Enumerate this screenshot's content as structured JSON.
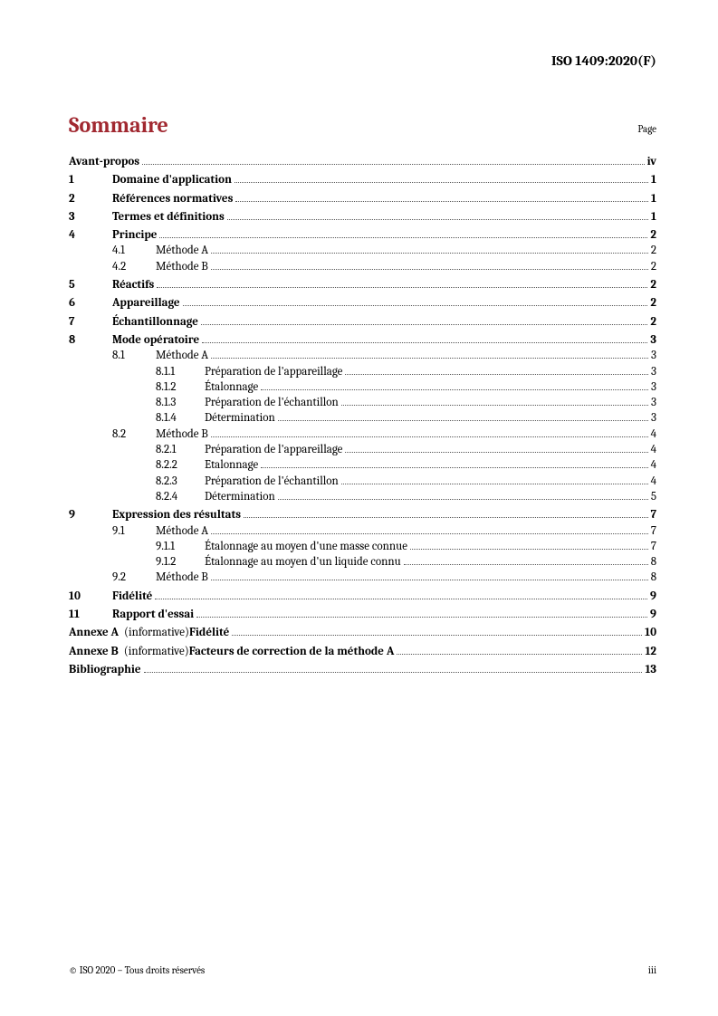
{
  "header": {
    "doc_id": "ISO 1409:2020(F)"
  },
  "title": "Sommaire",
  "page_label": "Page",
  "entries": [
    {
      "level": 0,
      "num": "",
      "label": "Avant-propos",
      "page": "iv",
      "bold": true,
      "gap": false,
      "annex": false
    },
    {
      "level": 1,
      "num": "1",
      "label": "Domaine d'application",
      "page": "1",
      "bold": true,
      "gap": true,
      "annex": false
    },
    {
      "level": 1,
      "num": "2",
      "label": "Références normatives",
      "page": "1",
      "bold": true,
      "gap": true,
      "annex": false
    },
    {
      "level": 1,
      "num": "3",
      "label": "Termes et définitions",
      "page": "1",
      "bold": true,
      "gap": true,
      "annex": false
    },
    {
      "level": 1,
      "num": "4",
      "label": "Principe",
      "page": "2",
      "bold": true,
      "gap": true,
      "annex": false
    },
    {
      "level": 2,
      "num": "4.1",
      "label": "Méthode A",
      "page": "2",
      "bold": false,
      "gap": false,
      "annex": false
    },
    {
      "level": 2,
      "num": "4.2",
      "label": "Méthode B",
      "page": "2",
      "bold": false,
      "gap": false,
      "annex": false
    },
    {
      "level": 1,
      "num": "5",
      "label": "Réactifs",
      "page": "2",
      "bold": true,
      "gap": true,
      "annex": false
    },
    {
      "level": 1,
      "num": "6",
      "label": "Appareillage",
      "page": "2",
      "bold": true,
      "gap": true,
      "annex": false
    },
    {
      "level": 1,
      "num": "7",
      "label": "Échantillonnage",
      "page": "2",
      "bold": true,
      "gap": true,
      "annex": false
    },
    {
      "level": 1,
      "num": "8",
      "label": "Mode opératoire",
      "page": "3",
      "bold": true,
      "gap": true,
      "annex": false
    },
    {
      "level": 2,
      "num": "8.1",
      "label": "Méthode A",
      "page": "3",
      "bold": false,
      "gap": false,
      "annex": false
    },
    {
      "level": 3,
      "num": "8.1.1",
      "label": "Préparation de l'appareillage",
      "page": "3",
      "bold": false,
      "gap": false,
      "annex": false
    },
    {
      "level": 3,
      "num": "8.1.2",
      "label": "Étalonnage",
      "page": "3",
      "bold": false,
      "gap": false,
      "annex": false
    },
    {
      "level": 3,
      "num": "8.1.3",
      "label": "Préparation de l'échantillon",
      "page": "3",
      "bold": false,
      "gap": false,
      "annex": false
    },
    {
      "level": 3,
      "num": "8.1.4",
      "label": "Détermination",
      "page": "3",
      "bold": false,
      "gap": false,
      "annex": false
    },
    {
      "level": 2,
      "num": "8.2",
      "label": "Méthode B",
      "page": "4",
      "bold": false,
      "gap": false,
      "annex": false
    },
    {
      "level": 3,
      "num": "8.2.1",
      "label": "Préparation de l'appareillage",
      "page": "4",
      "bold": false,
      "gap": false,
      "annex": false
    },
    {
      "level": 3,
      "num": "8.2.2",
      "label": "Etalonnage",
      "page": "4",
      "bold": false,
      "gap": false,
      "annex": false
    },
    {
      "level": 3,
      "num": "8.2.3",
      "label": "Préparation de l'échantillon",
      "page": "4",
      "bold": false,
      "gap": false,
      "annex": false
    },
    {
      "level": 3,
      "num": "8.2.4",
      "label": "Détermination",
      "page": "5",
      "bold": false,
      "gap": false,
      "annex": false
    },
    {
      "level": 1,
      "num": "9",
      "label": "Expression des résultats",
      "page": "7",
      "bold": true,
      "gap": true,
      "annex": false
    },
    {
      "level": 2,
      "num": "9.1",
      "label": "Méthode A",
      "page": "7",
      "bold": false,
      "gap": false,
      "annex": false
    },
    {
      "level": 3,
      "num": "9.1.1",
      "label": "Étalonnage au moyen d'une masse connue",
      "page": "7",
      "bold": false,
      "gap": false,
      "annex": false
    },
    {
      "level": 3,
      "num": "9.1.2",
      "label": "Étalonnage au moyen d'un liquide connu",
      "page": "8",
      "bold": false,
      "gap": false,
      "annex": false
    },
    {
      "level": 2,
      "num": "9.2",
      "label": "Méthode B",
      "page": "8",
      "bold": false,
      "gap": false,
      "annex": false
    },
    {
      "level": 1,
      "num": "10",
      "label": "Fidélité",
      "page": "9",
      "bold": true,
      "gap": true,
      "annex": false
    },
    {
      "level": 1,
      "num": "11",
      "label": "Rapport d'essai",
      "page": "9",
      "bold": true,
      "gap": true,
      "annex": false
    },
    {
      "level": 0,
      "num": "Annexe A",
      "inform": " (informative) ",
      "label": "Fidélité",
      "page": "10",
      "bold": true,
      "gap": true,
      "annex": true
    },
    {
      "level": 0,
      "num": "Annexe B",
      "inform": " (informative) ",
      "label": "Facteurs de correction de la méthode A",
      "page": "12",
      "bold": true,
      "gap": true,
      "annex": true
    },
    {
      "level": 0,
      "num": "",
      "label": "Bibliographie",
      "page": "13",
      "bold": true,
      "gap": true,
      "annex": false
    }
  ],
  "footer": {
    "left": "© ISO 2020 – Tous droits réservés",
    "right": "iii"
  }
}
